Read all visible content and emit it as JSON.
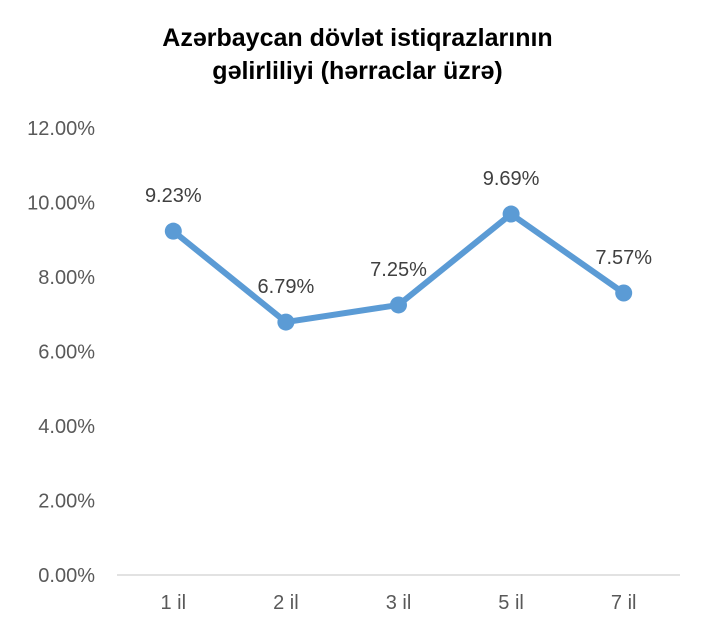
{
  "chart_data": {
    "type": "line",
    "title_lines": [
      "Azərbaycan dövlət istiqrazlarının",
      "gəlirliliyi (hərraclar üzrə)"
    ],
    "categories": [
      "1 il",
      "2 il",
      "3 il",
      "5 il",
      "7 il"
    ],
    "series": [
      {
        "values": [
          9.23,
          6.79,
          7.25,
          9.69,
          7.57
        ],
        "data_labels": [
          "9.23%",
          "6.79%",
          "7.25%",
          "9.69%",
          "7.57%"
        ],
        "color": "#5B9BD5"
      }
    ],
    "ylim": [
      0,
      12
    ],
    "y_ticks": [
      0,
      2,
      4,
      6,
      8,
      10,
      12
    ],
    "y_tick_labels": [
      "0.00%",
      "2.00%",
      "4.00%",
      "6.00%",
      "8.00%",
      "10.00%",
      "12.00%"
    ],
    "grid": false,
    "legend": "none",
    "axis_color": "#D9D9D9",
    "text_color": "#595959"
  }
}
